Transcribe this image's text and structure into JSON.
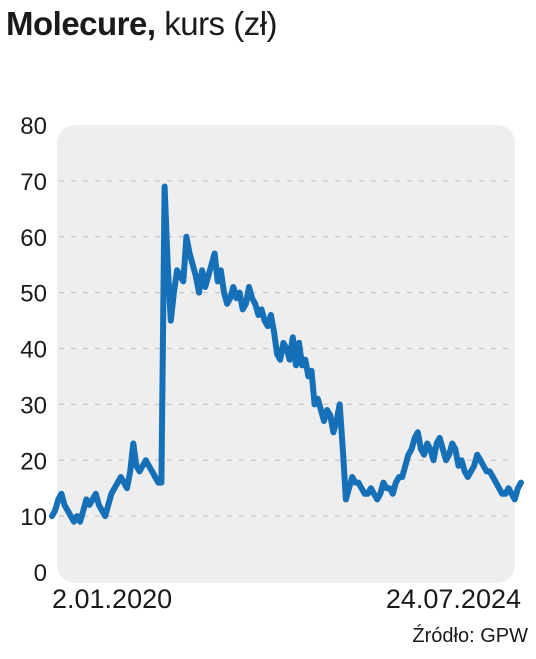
{
  "title": {
    "main": "Molecure,",
    "sub": " kurs (zł)"
  },
  "source": "Źródło: GPW",
  "colors": {
    "line": "#1670b8",
    "plot_bg": "#eeeeee",
    "grid": "#c8c8c8",
    "text": "#1a1a1a"
  },
  "chart_data": {
    "type": "line",
    "title": "Molecure, kurs (zł)",
    "ylabel": "kurs (zł)",
    "xlabel": "",
    "ylim": [
      0,
      80
    ],
    "yticks": [
      0,
      10,
      20,
      30,
      40,
      50,
      60,
      70,
      80
    ],
    "xtick_labels": [
      "2.01.2020",
      "24.07.2024"
    ],
    "x_range": [
      "2020-01-02",
      "2024-07-24"
    ],
    "grid": true,
    "series": [
      {
        "values": [
          10,
          11,
          13,
          14,
          12,
          11,
          10,
          9,
          10,
          9,
          11,
          13,
          12,
          13,
          14,
          12,
          11,
          10,
          12,
          14,
          15,
          16,
          17,
          16,
          15,
          18,
          23,
          19,
          18,
          19,
          20,
          19,
          18,
          17,
          16,
          16,
          69,
          55,
          45,
          50,
          54,
          53,
          52,
          60,
          57,
          55,
          53,
          50,
          54,
          51,
          53,
          55,
          57,
          52,
          54,
          50,
          48,
          49,
          51,
          49,
          50,
          47,
          48,
          51,
          49,
          48,
          46,
          47,
          45,
          44,
          46,
          43,
          39,
          38,
          41,
          40,
          38,
          42,
          37,
          41,
          37,
          38,
          35,
          36,
          30,
          31,
          29,
          27,
          29,
          28,
          25,
          27,
          30,
          22,
          13,
          15,
          17,
          16,
          16,
          15,
          14,
          14,
          15,
          14,
          13,
          14,
          16,
          15,
          15,
          14,
          16,
          17,
          17,
          19,
          21,
          22,
          24,
          25,
          22,
          21,
          23,
          22,
          20,
          23,
          24,
          22,
          20,
          21,
          23,
          22,
          19,
          20,
          18,
          17,
          18,
          19,
          21,
          20,
          19,
          18,
          18,
          17,
          16,
          15,
          14,
          14,
          15,
          14,
          13,
          15,
          16
        ]
      }
    ]
  }
}
